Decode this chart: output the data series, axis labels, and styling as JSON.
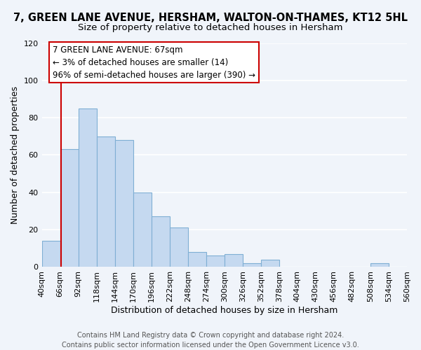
{
  "title": "7, GREEN LANE AVENUE, HERSHAM, WALTON-ON-THAMES, KT12 5HL",
  "subtitle": "Size of property relative to detached houses in Hersham",
  "xlabel": "Distribution of detached houses by size in Hersham",
  "ylabel": "Number of detached properties",
  "bar_color": "#c5d9f0",
  "bar_edge_color": "#7fafd4",
  "bin_edges": [
    40,
    66,
    92,
    118,
    144,
    170,
    196,
    222,
    248,
    274,
    300,
    326,
    352,
    378,
    404,
    430,
    456,
    482,
    508,
    534,
    560
  ],
  "bar_heights": [
    14,
    63,
    85,
    70,
    68,
    40,
    27,
    21,
    8,
    6,
    7,
    2,
    4,
    0,
    0,
    0,
    0,
    0,
    2,
    0
  ],
  "tick_labels": [
    "40sqm",
    "66sqm",
    "92sqm",
    "118sqm",
    "144sqm",
    "170sqm",
    "196sqm",
    "222sqm",
    "248sqm",
    "274sqm",
    "300sqm",
    "326sqm",
    "352sqm",
    "378sqm",
    "404sqm",
    "430sqm",
    "456sqm",
    "482sqm",
    "508sqm",
    "534sqm",
    "560sqm"
  ],
  "ylim": [
    0,
    120
  ],
  "yticks": [
    0,
    20,
    40,
    60,
    80,
    100,
    120
  ],
  "property_line_x": 67,
  "property_line_color": "#cc0000",
  "annotation_line1": "7 GREEN LANE AVENUE: 67sqm",
  "annotation_line2": "← 3% of detached houses are smaller (14)",
  "annotation_line3": "96% of semi-detached houses are larger (390) →",
  "footer_line1": "Contains HM Land Registry data © Crown copyright and database right 2024.",
  "footer_line2": "Contains public sector information licensed under the Open Government Licence v3.0.",
  "background_color": "#f0f4fa",
  "grid_color": "#ffffff",
  "title_fontsize": 10.5,
  "subtitle_fontsize": 9.5,
  "axis_label_fontsize": 9,
  "tick_fontsize": 8,
  "annotation_fontsize": 8.5,
  "footer_fontsize": 7
}
